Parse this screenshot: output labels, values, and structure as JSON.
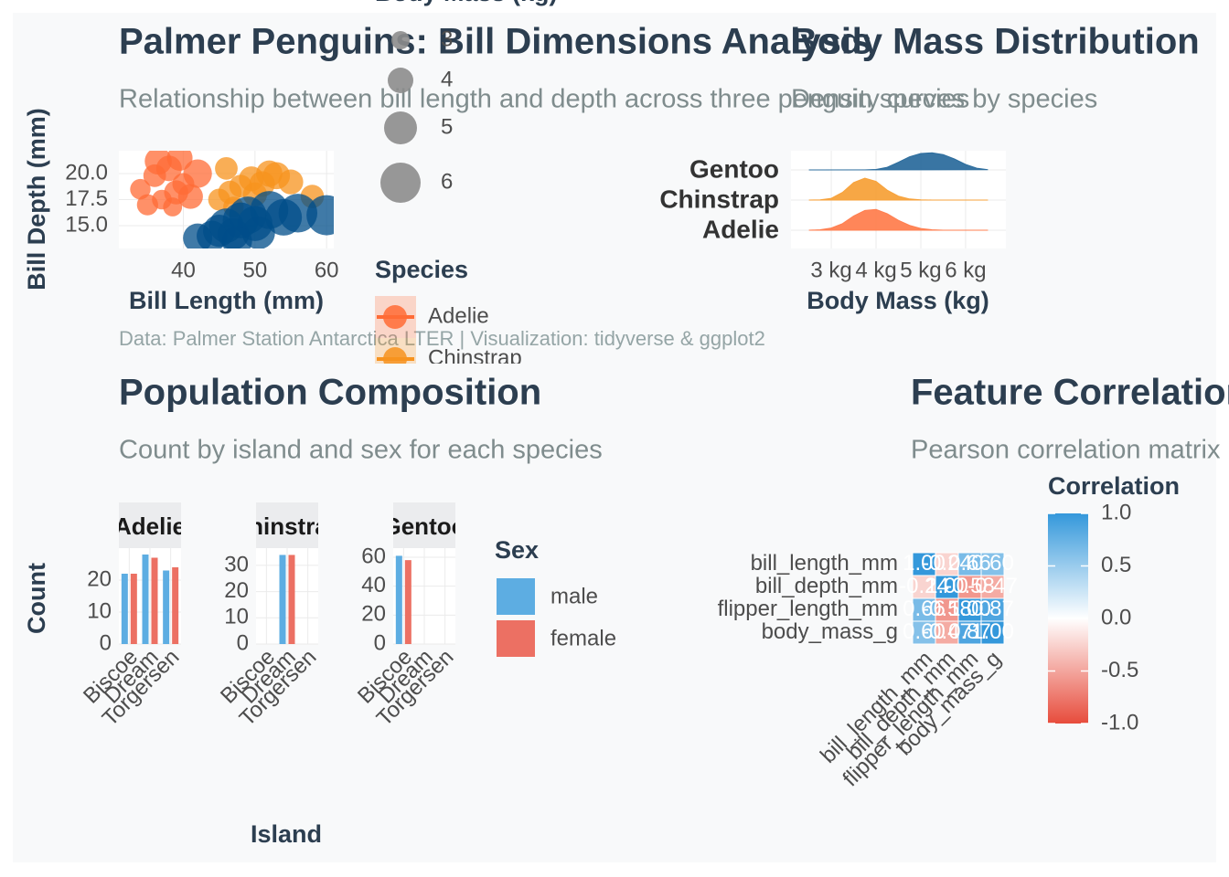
{
  "chart_data": [
    {
      "type": "scatter",
      "title": "Palmer Penguins: Bill Dimensions Analysis",
      "subtitle": "Relationship between bill length and depth across three penguin species",
      "caption": "Data: Palmer Station Antarctica LTER | Visualization: tidyverse & ggplot2",
      "x_label": "Bill Length (mm)",
      "y_label": "Bill Depth (mm)",
      "xlim": [
        31,
        61
      ],
      "ylim": [
        12.8,
        22.2
      ],
      "xticks": [
        40,
        50,
        60
      ],
      "yticks": [
        {
          "value": 15,
          "label": "15.0"
        },
        17.5,
        {
          "value": 20,
          "label": "20.0"
        }
      ],
      "grid": true,
      "size_legend_title": "Body Mass (kg)",
      "size_legend": [
        3,
        4,
        5,
        6
      ],
      "color_legend_title": "Species",
      "series": [
        {
          "name": "Adelie",
          "color": "#FF6B35",
          "x": [
            34,
            36,
            37,
            38,
            39,
            40,
            41,
            36.5,
            38.5,
            42,
            35,
            39.5
          ],
          "values": [
            18.5,
            19.8,
            17.5,
            20.5,
            18.2,
            19,
            17.8,
            21.2,
            16.8,
            20,
            17,
            21.5
          ],
          "sizes": [
            3.3,
            3.6,
            3.2,
            4.0,
            3.8,
            3.5,
            3.9,
            4.2,
            3.1,
            4.4,
            3.4,
            4.0
          ]
        },
        {
          "name": "Chinstrap",
          "color": "#F7931E",
          "x": [
            45,
            46.5,
            48,
            49.5,
            50,
            51,
            52,
            47,
            53,
            55,
            58,
            46
          ],
          "values": [
            17.5,
            18.2,
            18.8,
            19.5,
            18,
            19,
            20,
            16.8,
            19.8,
            19.2,
            17.8,
            20.5
          ],
          "sizes": [
            3.5,
            3.7,
            3.6,
            3.9,
            3.8,
            4.0,
            4.1,
            3.3,
            4.2,
            3.9,
            3.7,
            3.6
          ]
        },
        {
          "name": "Gentoo",
          "color": "#004E89",
          "x": [
            42,
            44,
            45,
            46,
            47,
            48,
            49,
            50,
            52,
            54,
            56,
            60,
            50.5,
            47.5
          ],
          "values": [
            13.8,
            14,
            14.5,
            15,
            14.2,
            15.5,
            16,
            15.2,
            16.5,
            15.8,
            16.2,
            16,
            14.3,
            13.5
          ],
          "sizes": [
            4.5,
            4.7,
            4.9,
            5.2,
            4.8,
            5.4,
            5.6,
            5.3,
            5.7,
            5.5,
            5.8,
            6.0,
            5.0,
            4.6
          ]
        }
      ]
    },
    {
      "type": "ridgeline",
      "title": "Body Mass Distribution",
      "subtitle": "Density curves by species",
      "x_label": "Body Mass (kg)",
      "xlim": [
        2.1,
        6.9
      ],
      "xticks": [
        {
          "value": 3,
          "label": "3 kg"
        },
        {
          "value": 4,
          "label": "4 kg"
        },
        {
          "value": 5,
          "label": "5 kg"
        },
        {
          "value": 6,
          "label": "6 kg"
        }
      ],
      "ylim": [
        0,
        1
      ],
      "grid": true,
      "x": [
        2.5,
        2.75,
        3,
        3.25,
        3.5,
        3.75,
        4,
        4.25,
        4.5,
        4.75,
        5,
        5.25,
        5.5,
        5.75,
        6,
        6.25,
        6.5
      ],
      "series": [
        {
          "name": "Adelie",
          "color": "#FF7F50",
          "values": [
            0,
            0.02,
            0.1,
            0.3,
            0.65,
            0.9,
            0.95,
            0.75,
            0.45,
            0.22,
            0.08,
            0.02,
            0,
            0,
            0,
            0,
            0
          ]
        },
        {
          "name": "Chinstrap",
          "color": "#F7A23B",
          "values": [
            0,
            0.01,
            0.08,
            0.35,
            0.8,
            1.0,
            0.85,
            0.45,
            0.18,
            0.05,
            0.01,
            0,
            0,
            0,
            0,
            0,
            0
          ]
        },
        {
          "name": "Gentoo",
          "color": "#2E6E9E",
          "values": [
            0,
            0,
            0,
            0,
            0,
            0,
            0.02,
            0.12,
            0.35,
            0.6,
            0.75,
            0.78,
            0.7,
            0.5,
            0.25,
            0.08,
            0.01
          ]
        }
      ]
    },
    {
      "type": "faceted_bar",
      "title": "Population Composition",
      "subtitle": "Count by island and sex for each species",
      "x_label": "Island",
      "y_label": "Count",
      "legend_title": "Sex",
      "categories": [
        "Biscoe",
        "Dream",
        "Torgersen"
      ],
      "legend": [
        {
          "name": "male",
          "color": "#5DADE2"
        },
        {
          "name": "female",
          "color": "#EC7063"
        }
      ],
      "grid": true,
      "facets": [
        {
          "title": "Adelie",
          "ylim": [
            0,
            30
          ],
          "yticks": [
            0,
            10,
            20
          ],
          "series": [
            {
              "values": [
                22,
                28,
                23
              ]
            },
            {
              "values": [
                22,
                27,
                24
              ]
            }
          ]
        },
        {
          "title": "Chinstrap",
          "ylim": [
            0,
            36.6
          ],
          "yticks": [
            0,
            10,
            20,
            30
          ],
          "series": [
            {
              "values": [
                null,
                34,
                null
              ]
            },
            {
              "values": [
                null,
                34,
                null
              ]
            }
          ]
        },
        {
          "title": "Gentoo",
          "ylim": [
            0,
            66.3
          ],
          "yticks": [
            0,
            20,
            40,
            60
          ],
          "series": [
            {
              "values": [
                61,
                null,
                null
              ]
            },
            {
              "values": [
                58,
                null,
                null
              ]
            }
          ]
        }
      ]
    },
    {
      "type": "heatmap",
      "title": "Feature Correlations",
      "subtitle": "Pearson correlation matrix",
      "legend_title": "Correlation",
      "variables": [
        "bill_length_mm",
        "bill_depth_mm",
        "flipper_length_mm",
        "body_mass_g"
      ],
      "values": [
        [
          1,
          -0.24,
          0.66,
          0.6
        ],
        [
          -0.24,
          1,
          -0.58,
          -0.47
        ],
        [
          0.66,
          -0.58,
          1,
          0.87
        ],
        [
          0.6,
          -0.47,
          0.87,
          1
        ]
      ],
      "value_labels": [
        [
          "1.00",
          "-0.24",
          "0.66",
          "0.60"
        ],
        [
          "-0.24",
          "1.00",
          "-0.58",
          "-0.47"
        ],
        [
          "0.66",
          "-0.58",
          "1.00",
          "0.87"
        ],
        [
          "0.60",
          "-0.47",
          "0.87",
          "1.00"
        ]
      ],
      "zlim": [
        -1,
        1
      ],
      "zticks": [
        {
          "value": -1,
          "label": "-1.0"
        },
        -0.5,
        {
          "value": 0,
          "label": "0.0"
        },
        0.5,
        {
          "value": 1,
          "label": "1.0"
        }
      ],
      "colors": {
        "low": "#E74C3C",
        "mid": "#FFFFFF",
        "high": "#3498DB"
      }
    }
  ]
}
